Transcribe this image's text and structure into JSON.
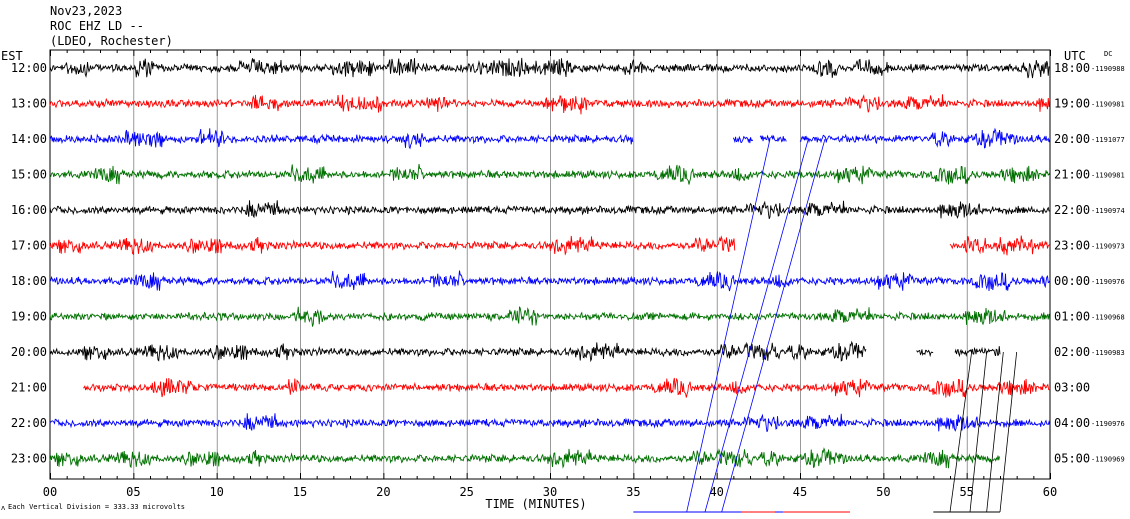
{
  "header": {
    "date": "Nov23,2023",
    "station": "ROC EHZ LD --",
    "network": "(LDEO, Rochester)"
  },
  "chart_data": {
    "type": "line",
    "title": "Nov23,2023 ROC EHZ LD --",
    "subtitle": "(LDEO, Rochester)",
    "left_axis_label": "EST",
    "right_axis_label": "UTC",
    "dc_label": "DC",
    "xlabel": "TIME (MINUTES)",
    "xlim": [
      0,
      60
    ],
    "x_ticks": [
      "00",
      "05",
      "10",
      "15",
      "20",
      "25",
      "30",
      "35",
      "40",
      "45",
      "50",
      "55",
      "60"
    ],
    "scale_note": "Each Vertical Division =  333.33 microvolts",
    "corner_mark": "ʌ",
    "grid": "vertical lines every minute, labeled every 5 minutes",
    "colors": [
      "#000000",
      "#ff0000",
      "#0000ff",
      "#007000"
    ],
    "traces": [
      {
        "est": "12:00",
        "utc": "18:00",
        "dc": "-1190988",
        "color": "#000000",
        "segments": [
          [
            0,
            60
          ]
        ]
      },
      {
        "est": "13:00",
        "utc": "19:00",
        "dc": "-1190981",
        "color": "#ff0000",
        "segments": [
          [
            0,
            60
          ]
        ]
      },
      {
        "est": "14:00",
        "utc": "20:00",
        "dc": "-1191077",
        "color": "#0000ff",
        "segments": [
          [
            0,
            35
          ],
          [
            41,
            42.2
          ],
          [
            42.6,
            44.2
          ],
          [
            45,
            60
          ]
        ]
      },
      {
        "est": "15:00",
        "utc": "21:00",
        "dc": "-1190981",
        "color": "#007000",
        "segments": [
          [
            0,
            60
          ]
        ]
      },
      {
        "est": "16:00",
        "utc": "22:00",
        "dc": "-1190974",
        "color": "#000000",
        "segments": [
          [
            0,
            60
          ]
        ]
      },
      {
        "est": "17:00",
        "utc": "23:00",
        "dc": "-1190973",
        "color": "#ff0000",
        "segments": [
          [
            0,
            41.1
          ],
          [
            54,
            60
          ]
        ]
      },
      {
        "est": "18:00",
        "utc": "00:00",
        "dc": "-1190976",
        "color": "#0000ff",
        "segments": [
          [
            0,
            60
          ]
        ]
      },
      {
        "est": "19:00",
        "utc": "01:00",
        "dc": "-1190968",
        "color": "#007000",
        "segments": [
          [
            0,
            60
          ]
        ]
      },
      {
        "est": "20:00",
        "utc": "02:00",
        "dc": "-1190983",
        "color": "#000000",
        "segments": [
          [
            0,
            49
          ],
          [
            52,
            53
          ],
          [
            54.3,
            57
          ]
        ]
      },
      {
        "est": "21:00",
        "utc": "03:00",
        "dc": "",
        "color": "#ff0000",
        "segments": [
          [
            2,
            60
          ]
        ]
      },
      {
        "est": "22:00",
        "utc": "04:00",
        "dc": "-1190976",
        "color": "#0000ff",
        "segments": [
          [
            0,
            60
          ]
        ]
      },
      {
        "est": "23:00",
        "utc": "05:00",
        "dc": "-1190969",
        "color": "#007000",
        "segments": [
          [
            0,
            57
          ]
        ]
      }
    ]
  }
}
